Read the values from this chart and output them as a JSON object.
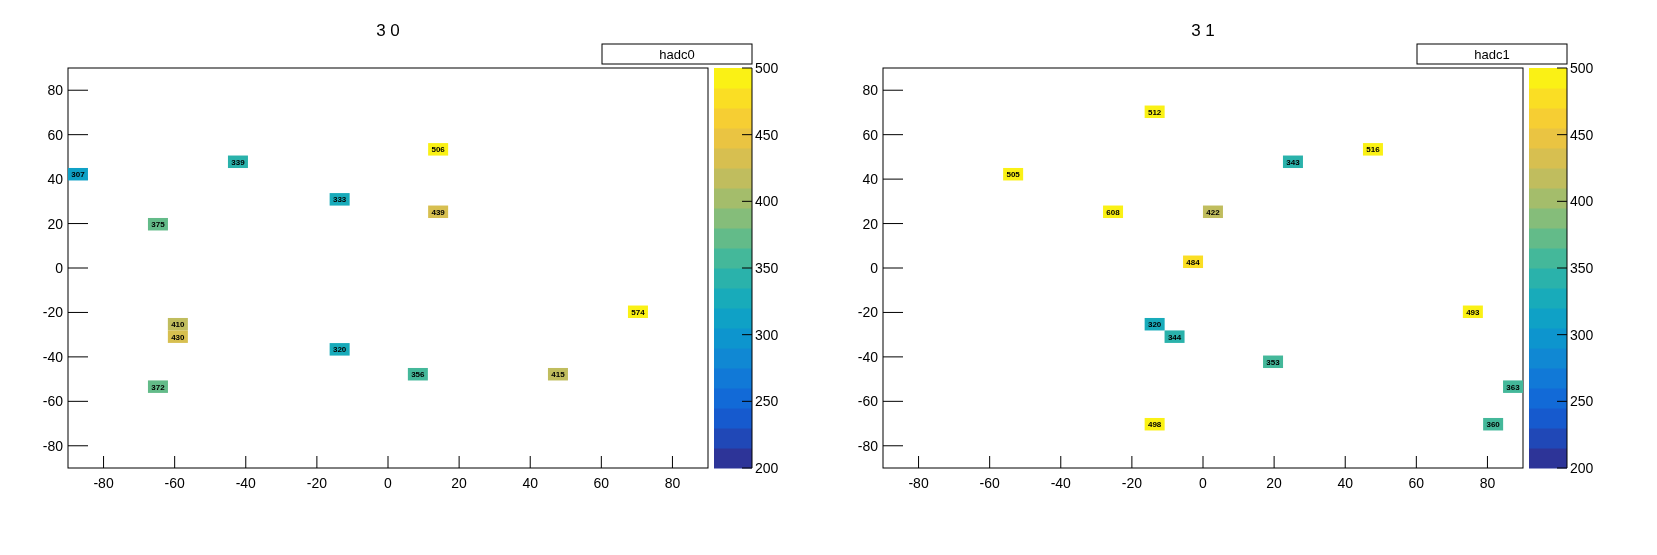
{
  "chart_data": [
    {
      "type": "scatter",
      "title": "3 0",
      "marker": "square",
      "grid": false,
      "xlim": [
        -90,
        90
      ],
      "ylim": [
        -90,
        90
      ],
      "xticks": [
        -80,
        -60,
        -40,
        -20,
        0,
        20,
        40,
        60,
        80
      ],
      "yticks": [
        -80,
        -60,
        -40,
        -20,
        0,
        20,
        40,
        60,
        80
      ],
      "clim": [
        200,
        500
      ],
      "cticks": [
        200,
        250,
        300,
        350,
        400,
        450,
        500
      ],
      "x": [
        -87.2,
        -42.2,
        -13.6,
        -64.7,
        -59.1,
        -59.1,
        -13.6,
        -64.7,
        8.4,
        14.1,
        14.1,
        47.8,
        70.3
      ],
      "values": [
        42.2,
        47.8,
        30.9,
        19.7,
        -25.3,
        -30.9,
        -36.6,
        -53.4,
        -47.8,
        53.4,
        25.3,
        -47.8,
        -19.7
      ],
      "cvalues": [
        307,
        339,
        333,
        375,
        410,
        430,
        320,
        372,
        356,
        506,
        439,
        415,
        574
      ],
      "annotations": [
        "hadc0",
        {
          "text": "307",
          "x": -87.2,
          "y": 42.2
        },
        {
          "text": "339",
          "x": -42.2,
          "y": 47.8
        },
        {
          "text": "333",
          "x": -13.6,
          "y": 30.9
        },
        {
          "text": "375",
          "x": -64.7,
          "y": 19.7
        },
        {
          "text": "410",
          "x": -59.1,
          "y": -25.3
        },
        {
          "text": "430",
          "x": -59.1,
          "y": -30.9
        },
        {
          "text": "320",
          "x": -13.6,
          "y": -36.6
        },
        {
          "text": "372",
          "x": -64.7,
          "y": -53.4
        },
        {
          "text": "356",
          "x": 8.4,
          "y": -47.8
        },
        {
          "text": "506",
          "x": 14.1,
          "y": 53.4
        },
        {
          "text": "439",
          "x": 14.1,
          "y": 25.3
        },
        {
          "text": "415",
          "x": 47.8,
          "y": -47.8
        },
        {
          "text": "574",
          "x": 70.3,
          "y": -19.7
        }
      ]
    },
    {
      "type": "scatter",
      "title": "3 1",
      "marker": "square",
      "grid": false,
      "xlim": [
        -90,
        90
      ],
      "ylim": [
        -90,
        90
      ],
      "xticks": [
        -80,
        -60,
        -40,
        -20,
        0,
        20,
        40,
        60,
        80
      ],
      "yticks": [
        -80,
        -60,
        -40,
        -20,
        0,
        20,
        40,
        60,
        80
      ],
      "clim": [
        200,
        500
      ],
      "cticks": [
        200,
        250,
        300,
        350,
        400,
        450,
        500
      ],
      "x": [
        -13.6,
        -53.4,
        -25.3,
        2.8,
        -2.8,
        -13.6,
        -8.0,
        -13.6,
        25.3,
        47.8,
        75.9,
        19.7,
        87.2,
        81.6
      ],
      "values": [
        70.3,
        42.2,
        25.3,
        25.3,
        2.8,
        -25.3,
        -30.9,
        -70.3,
        47.8,
        53.4,
        -19.7,
        -42.2,
        -53.4,
        -70.3
      ],
      "cvalues": [
        512,
        505,
        608,
        422,
        484,
        320,
        344,
        498,
        343,
        516,
        493,
        353,
        363,
        360
      ],
      "annotations": [
        "hadc1",
        {
          "text": "512",
          "x": -13.6,
          "y": 70.3
        },
        {
          "text": "505",
          "x": -53.4,
          "y": 42.2
        },
        {
          "text": "608",
          "x": -25.3,
          "y": 25.3
        },
        {
          "text": "422",
          "x": 2.8,
          "y": 25.3
        },
        {
          "text": "484",
          "x": -2.8,
          "y": 2.8
        },
        {
          "text": "320",
          "x": -13.6,
          "y": -25.3
        },
        {
          "text": "344",
          "x": -8.0,
          "y": -30.9
        },
        {
          "text": "498",
          "x": -13.6,
          "y": -70.3
        },
        {
          "text": "343",
          "x": 25.3,
          "y": 47.8
        },
        {
          "text": "516",
          "x": 47.8,
          "y": 53.4
        },
        {
          "text": "493",
          "x": 75.9,
          "y": -19.7
        },
        {
          "text": "353",
          "x": 19.7,
          "y": -42.2
        },
        {
          "text": "363",
          "x": 87.2,
          "y": -53.4
        },
        {
          "text": "360",
          "x": 81.6,
          "y": -70.3
        }
      ]
    }
  ]
}
